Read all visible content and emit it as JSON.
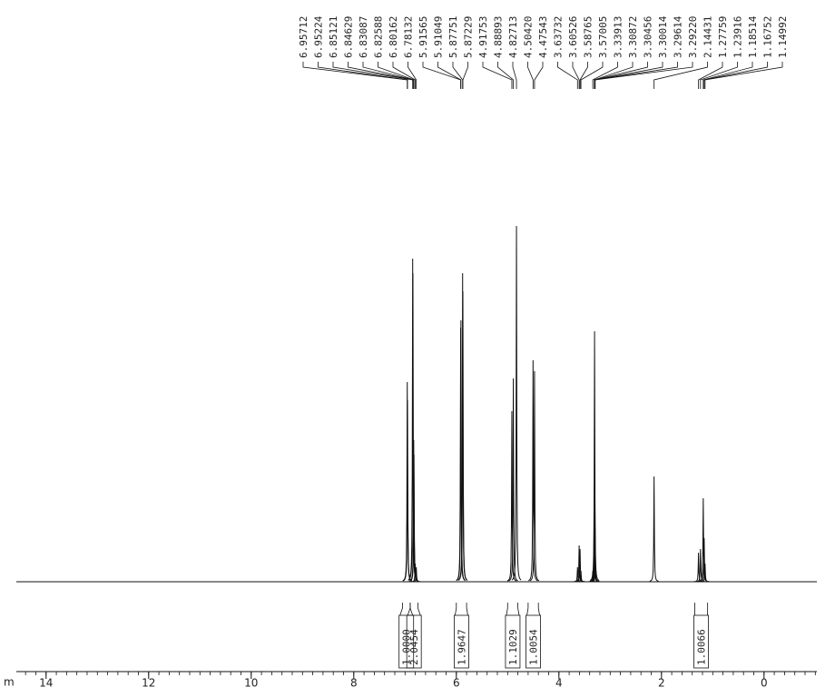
{
  "chart_data": {
    "type": "spectrum",
    "x_label": "m",
    "xlim": [
      14.58,
      -1.03
    ],
    "xticks": [
      14,
      12,
      10,
      8,
      6,
      4,
      2,
      0
    ],
    "minor_tick_step": 0.2,
    "ylim": [
      0,
      100
    ],
    "color": "#111111",
    "peaks": {
      "x": [
        6.95712,
        6.95224,
        6.85121,
        6.84629,
        6.83087,
        6.82588,
        6.80162,
        6.78132,
        5.91565,
        5.91049,
        5.87751,
        5.87229,
        4.91753,
        4.88893,
        4.82713,
        4.5042,
        4.47543,
        3.63732,
        3.60526,
        3.58765,
        3.57005,
        3.33913,
        3.30872,
        3.30456,
        3.30014,
        3.29614,
        3.2922,
        2.14431,
        1.27759,
        1.23916,
        1.18514,
        1.16752,
        1.14992
      ],
      "x_labels": [
        "6.95712",
        "6.95224",
        "6.85121",
        "6.84629",
        "6.83087",
        "6.82588",
        "6.80162",
        "6.78132",
        "5.91565",
        "5.91049",
        "5.87751",
        "5.87229",
        "4.91753",
        "4.88893",
        "4.82713",
        "4.50420",
        "4.47543",
        "3.63732",
        "3.60526",
        "3.58765",
        "3.57005",
        "3.33913",
        "3.30872",
        "3.30456",
        "3.30014",
        "3.29614",
        "3.29220",
        "2.14431",
        "1.27759",
        "1.23916",
        "1.18514",
        "1.16752",
        "1.14992"
      ],
      "values": [
        55,
        50,
        89,
        85,
        39,
        35,
        5,
        4,
        70,
        72,
        85,
        80,
        47,
        56,
        98,
        61,
        58,
        4,
        10,
        9,
        3,
        3,
        26,
        69,
        20,
        8,
        3,
        29,
        8,
        9,
        23,
        12,
        5
      ]
    },
    "integrals": {
      "values": [
        1,
        2.0454,
        1.9647,
        1.1029,
        1.0054,
        1.0066
      ],
      "value_labels": [
        "1.0000",
        "2.0454",
        "1.9647",
        "1.1029",
        "1.0054",
        "1.0066"
      ],
      "ranges": [
        [
          7.05,
          6.9
        ],
        [
          6.9,
          6.75
        ],
        [
          6.0,
          5.8
        ],
        [
          5.0,
          4.8
        ],
        [
          4.6,
          4.4
        ],
        [
          1.35,
          1.1
        ]
      ]
    }
  }
}
